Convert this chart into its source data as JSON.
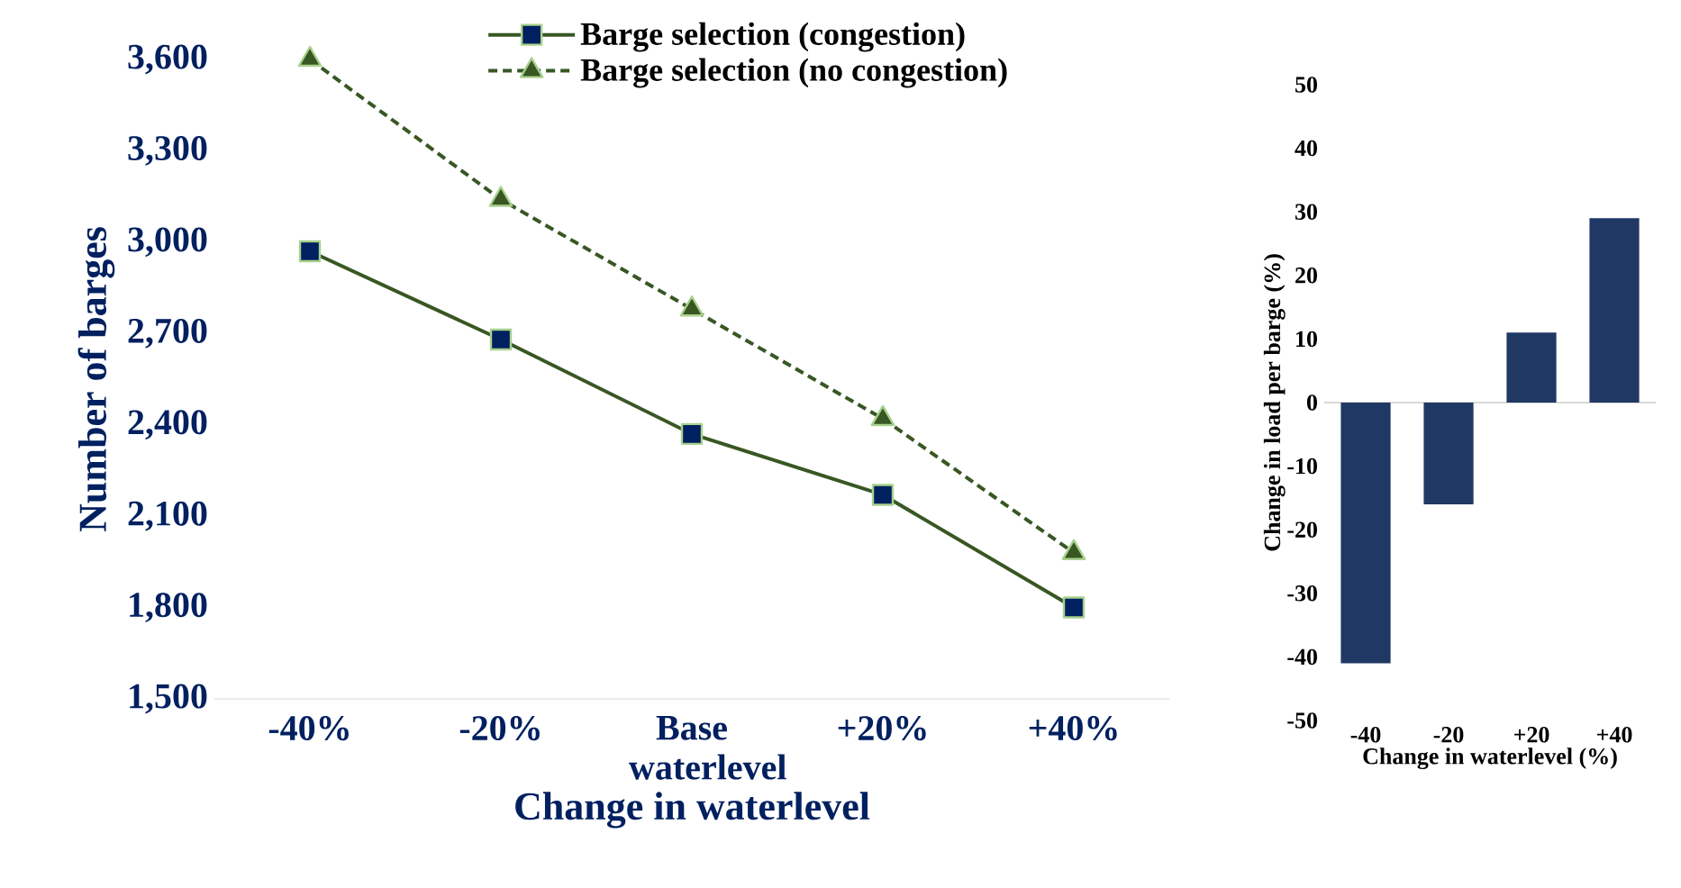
{
  "chart_data": [
    {
      "type": "line",
      "xlabel": "Change in waterlevel",
      "ylabel": "Number of barges",
      "categories": [
        "-40%",
        "-20%",
        "Base waterlevel",
        "+20%",
        "+40%"
      ],
      "series": [
        {
          "name": "Barge selection (congestion)",
          "color": "#385723",
          "marker": "square",
          "line_style": "solid",
          "values": [
            2970,
            2680,
            2370,
            2170,
            1800
          ]
        },
        {
          "name": "Barge selection (no congestion)",
          "color": "#385723",
          "marker": "triangle",
          "line_style": "dashed",
          "values": [
            3600,
            3140,
            2780,
            2420,
            1980
          ]
        }
      ],
      "ylim": [
        1500,
        3600
      ],
      "yticks": [
        {
          "value": 1500,
          "label": "1,500"
        },
        {
          "value": 1800,
          "label": "1,800"
        },
        {
          "value": 2100,
          "label": "2,100"
        },
        {
          "value": 2400,
          "label": "2,400"
        },
        {
          "value": 2700,
          "label": "2,700"
        },
        {
          "value": 3000,
          "label": "3,000"
        },
        {
          "value": 3300,
          "label": "3,300"
        },
        {
          "value": 3600,
          "label": "3,600"
        }
      ],
      "legend": "top"
    },
    {
      "type": "bar",
      "xlabel": "Change in waterlevel (%)",
      "ylabel": "Change in load per barge (%)",
      "categories": [
        "-40",
        "-20",
        "+20",
        "+40"
      ],
      "values": [
        -41,
        -16,
        11,
        29
      ],
      "color": "#203864",
      "ylim": [
        -50,
        50
      ],
      "yticks": [
        -50,
        -40,
        -30,
        -20,
        -10,
        0,
        10,
        20,
        30,
        40,
        50
      ]
    }
  ]
}
